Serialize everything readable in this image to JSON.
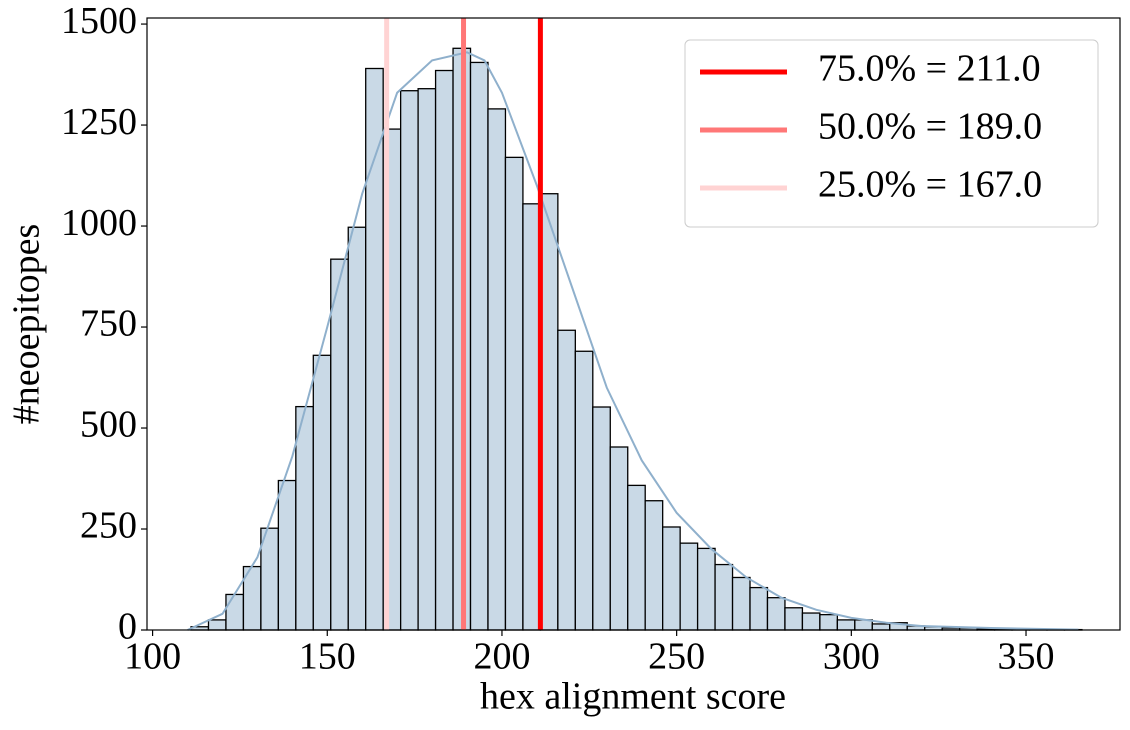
{
  "chart_data": {
    "type": "histogram",
    "xlabel": "hex alignment score",
    "ylabel": "#neoepitopes",
    "bins": [
      111,
      116,
      121,
      126,
      131,
      136,
      141,
      146,
      151,
      156,
      161,
      166,
      171,
      176,
      181,
      186,
      191,
      196,
      201,
      206,
      211,
      216,
      221,
      226,
      231,
      236,
      241,
      246,
      251,
      256,
      261,
      266,
      271,
      276,
      281,
      286,
      291,
      296,
      301,
      306,
      311,
      316,
      321,
      326,
      331,
      336,
      341,
      346,
      351,
      356,
      361,
      366
    ],
    "values": [
      8,
      25,
      88,
      157,
      252,
      370,
      553,
      680,
      918,
      997,
      1390,
      1240,
      1335,
      1340,
      1385,
      1440,
      1405,
      1290,
      1170,
      1055,
      1080,
      742,
      690,
      552,
      453,
      358,
      320,
      255,
      215,
      202,
      162,
      130,
      105,
      80,
      55,
      42,
      38,
      25,
      25,
      15,
      18,
      10,
      8,
      5,
      5,
      3,
      2,
      2,
      1,
      1,
      1
    ],
    "color": "#c9d9e6",
    "edgecolor": "#000000",
    "kde": {
      "color": "#8fb0cc",
      "x": [
        110,
        120,
        130,
        140,
        150,
        160,
        170,
        180,
        190,
        195,
        200,
        210,
        220,
        230,
        240,
        250,
        260,
        270,
        280,
        290,
        300,
        310,
        320,
        340,
        365
      ],
      "values": [
        0,
        40,
        180,
        430,
        750,
        1080,
        1330,
        1410,
        1430,
        1410,
        1330,
        1100,
        850,
        600,
        420,
        290,
        200,
        130,
        80,
        50,
        30,
        18,
        10,
        5,
        1
      ]
    },
    "vlines": [
      {
        "name": "75.0% = 211.0",
        "value": 211,
        "color": "#ff0000"
      },
      {
        "name": "50.0% = 189.0",
        "value": 189,
        "color": "#ff7777"
      },
      {
        "name": "25.0% = 167.0",
        "value": 167,
        "color": "#ffd3d3"
      }
    ],
    "legend": "upper right",
    "xlim": [
      98.4,
      376.9
    ],
    "ylim": [
      0,
      1515
    ],
    "xticks": [
      100,
      150,
      200,
      250,
      300,
      350
    ],
    "yticks": [
      0,
      250,
      500,
      750,
      1000,
      1250,
      1500
    ]
  }
}
